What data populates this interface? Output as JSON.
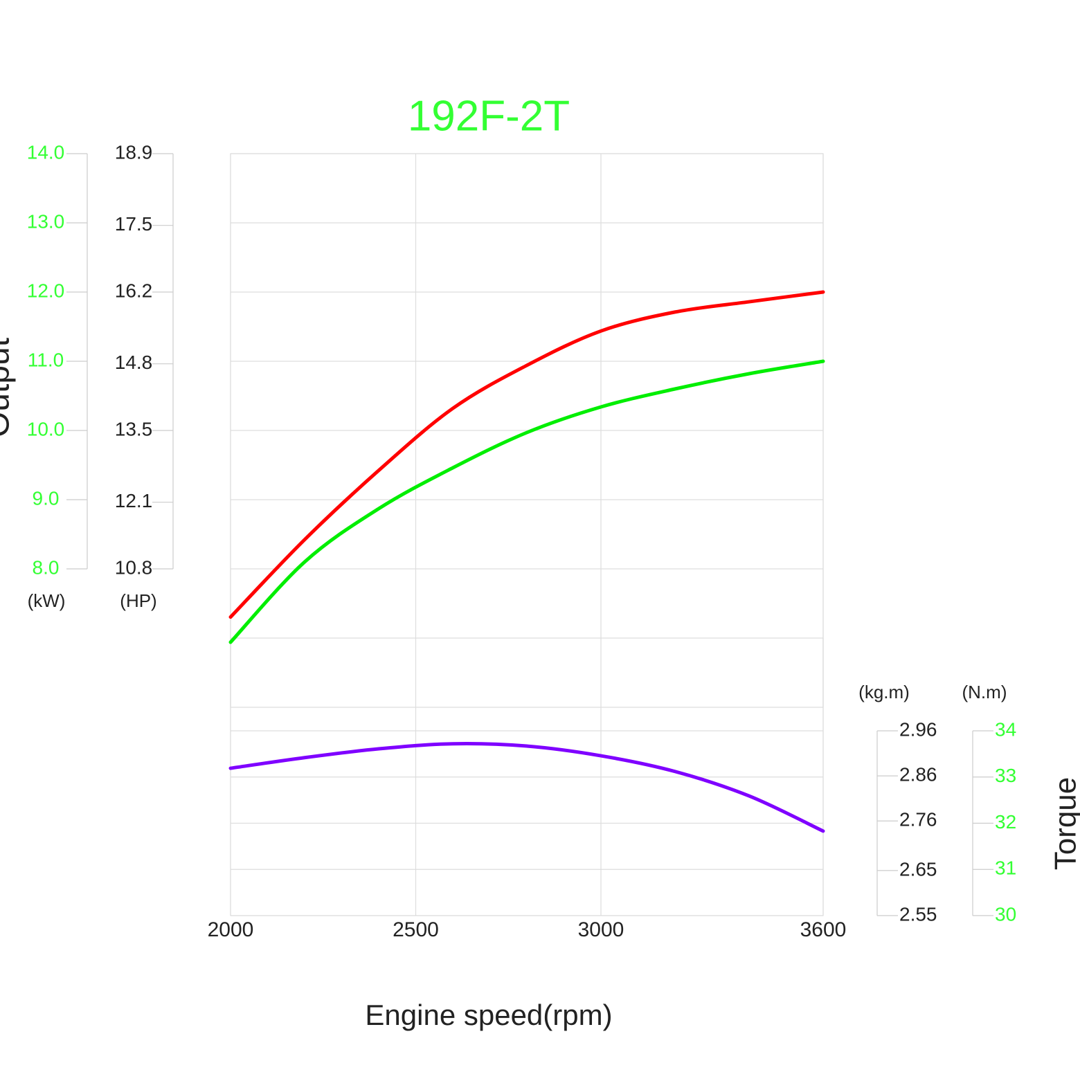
{
  "chart_data": {
    "type": "line",
    "title": "192F-2T",
    "title_color": "#33ff33",
    "x_label": "Engine speed(rpm)",
    "output_label": "Output",
    "torque_label": "Torque",
    "xlim": [
      2000,
      3600
    ],
    "xticks": [
      2000,
      2500,
      3000,
      3600
    ],
    "grid": true,
    "x": [
      2000,
      2200,
      2400,
      2600,
      2800,
      3000,
      3200,
      3400,
      3600
    ],
    "axes": [
      {
        "unit": "(kW)",
        "color": "#33ff33",
        "ylim": [
          8,
          14
        ],
        "yticks": [
          {
            "value": 8,
            "label": "8.0"
          },
          {
            "value": 9,
            "label": "9.0"
          },
          {
            "value": 10,
            "label": "10.0"
          },
          {
            "value": 11,
            "label": "11.0"
          },
          {
            "value": 12,
            "label": "12.0"
          },
          {
            "value": 13,
            "label": "13.0"
          },
          {
            "value": 14,
            "label": "14.0"
          }
        ]
      },
      {
        "unit": "(HP)",
        "color": "#222222",
        "ylim": [
          10.8,
          18.9
        ],
        "yticks": [
          10.8,
          12.1,
          13.5,
          14.8,
          16.2,
          17.5,
          18.9
        ]
      },
      {
        "unit": "(kg.m)",
        "color": "#222222",
        "ylim": [
          2.55,
          2.96
        ],
        "yticks": [
          2.55,
          2.65,
          2.76,
          2.86,
          2.96
        ]
      },
      {
        "unit": "(N.m)",
        "color": "#33ff33",
        "ylim": [
          30,
          34
        ],
        "yticks": [
          30,
          31,
          32,
          33,
          34
        ]
      }
    ],
    "series": [
      {
        "color": "#ff0000",
        "axis": 1,
        "values": [
          9.86,
          11.37,
          12.72,
          13.93,
          14.77,
          15.44,
          15.81,
          16.01,
          16.2
        ]
      },
      {
        "color": "#00ee00",
        "axis": 0,
        "values": [
          6.94,
          8.1,
          8.87,
          9.46,
          9.97,
          10.34,
          10.6,
          10.82,
          11.0
        ]
      },
      {
        "color": "#7f00ff",
        "axis": 3,
        "values": [
          33.19,
          33.42,
          33.61,
          33.72,
          33.67,
          33.46,
          33.12,
          32.59,
          31.83
        ]
      }
    ]
  }
}
